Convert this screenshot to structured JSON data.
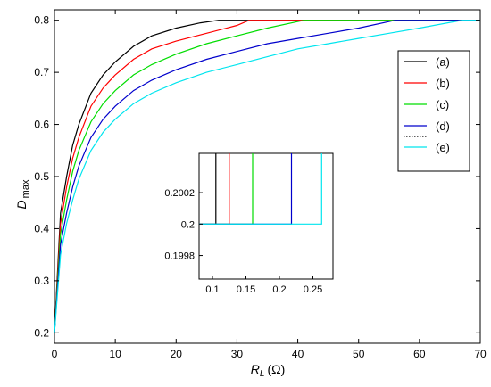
{
  "chart_data": [
    {
      "type": "line",
      "title": "",
      "xlabel": {
        "main": "R",
        "sub": "L",
        "unit": "(Ω)"
      },
      "ylabel": {
        "main": "D",
        "sub": "max"
      },
      "xlim": [
        0,
        70
      ],
      "ylim": [
        0.18,
        0.82
      ],
      "xticks": [
        0,
        10,
        20,
        30,
        40,
        50,
        60,
        70
      ],
      "yticks": [
        0.2,
        0.3,
        0.4,
        0.5,
        0.6,
        0.7,
        0.8
      ],
      "xtick_labels": [
        "0",
        "10",
        "20",
        "30",
        "40",
        "50",
        "60",
        "70"
      ],
      "ytick_labels": [
        "0.2",
        "0.3",
        "0.4",
        "0.5",
        "0.6",
        "0.7",
        "0.8"
      ],
      "grid": false,
      "legend_position": "top-right",
      "series": [
        {
          "name": "(a)",
          "color": "#000000",
          "x": [
            0,
            1,
            2,
            3,
            4,
            6,
            8,
            10,
            13,
            16,
            20,
            24,
            27,
            70
          ],
          "y": [
            0.2,
            0.43,
            0.5,
            0.56,
            0.6,
            0.66,
            0.695,
            0.72,
            0.75,
            0.77,
            0.785,
            0.795,
            0.8,
            0.8
          ]
        },
        {
          "name": "(b)",
          "color": "#ff0000",
          "x": [
            0,
            1,
            2,
            3,
            4,
            6,
            8,
            10,
            13,
            16,
            20,
            25,
            30,
            32,
            70
          ],
          "y": [
            0.2,
            0.41,
            0.48,
            0.535,
            0.575,
            0.635,
            0.67,
            0.695,
            0.725,
            0.745,
            0.76,
            0.775,
            0.79,
            0.8,
            0.8
          ]
        },
        {
          "name": "(c)",
          "color": "#00dd00",
          "x": [
            0,
            1,
            2,
            3,
            4,
            6,
            8,
            10,
            13,
            16,
            20,
            25,
            30,
            35,
            41,
            70
          ],
          "y": [
            0.2,
            0.39,
            0.455,
            0.51,
            0.55,
            0.605,
            0.64,
            0.665,
            0.695,
            0.715,
            0.735,
            0.755,
            0.77,
            0.785,
            0.8,
            0.8
          ]
        },
        {
          "name": "(d)",
          "color": "#0000cc",
          "x": [
            0,
            1,
            2,
            3,
            4,
            6,
            8,
            10,
            13,
            16,
            20,
            25,
            30,
            35,
            40,
            45,
            50,
            56,
            70
          ],
          "y": [
            0.2,
            0.37,
            0.43,
            0.48,
            0.52,
            0.575,
            0.61,
            0.635,
            0.665,
            0.685,
            0.705,
            0.725,
            0.74,
            0.755,
            0.765,
            0.775,
            0.785,
            0.8,
            0.8
          ]
        },
        {
          "name": "(e)",
          "color": "#00e5ee",
          "x": [
            0,
            1,
            2,
            3,
            4,
            6,
            8,
            10,
            13,
            16,
            20,
            25,
            30,
            35,
            40,
            45,
            50,
            55,
            60,
            67,
            70
          ],
          "y": [
            0.2,
            0.35,
            0.41,
            0.455,
            0.495,
            0.55,
            0.585,
            0.61,
            0.64,
            0.66,
            0.68,
            0.7,
            0.715,
            0.73,
            0.745,
            0.755,
            0.765,
            0.775,
            0.785,
            0.8,
            0.8
          ]
        }
      ],
      "legend_extra_entry": {
        "style": "dotted",
        "color": "#000000"
      }
    },
    {
      "type": "line",
      "title": "",
      "xlim": [
        0.08,
        0.28
      ],
      "ylim": [
        0.19965,
        0.20045
      ],
      "xticks": [
        0.1,
        0.15,
        0.2,
        0.25
      ],
      "yticks": [
        0.1998,
        0.2,
        0.2002
      ],
      "xtick_labels": [
        "0.1",
        "0.15",
        "0.2",
        "0.25"
      ],
      "ytick_labels": [
        "0.1998",
        "0.2",
        "0.2002"
      ],
      "grid": false,
      "baseline_y": 0.2,
      "series": [
        {
          "name": "(a)",
          "color": "#000000",
          "jump_x": 0.105
        },
        {
          "name": "(b)",
          "color": "#ff0000",
          "jump_x": 0.125
        },
        {
          "name": "(c)",
          "color": "#00dd00",
          "jump_x": 0.16
        },
        {
          "name": "(d)",
          "color": "#0000cc",
          "jump_x": 0.218
        },
        {
          "name": "(e)",
          "color": "#00e5ee",
          "jump_x": 0.263
        }
      ]
    }
  ]
}
